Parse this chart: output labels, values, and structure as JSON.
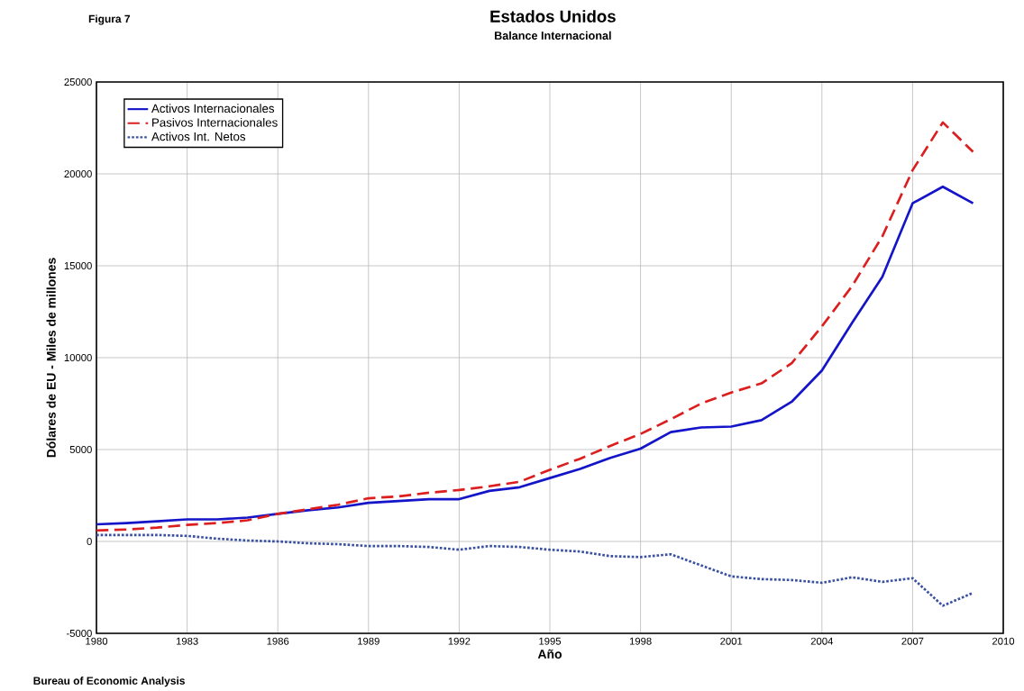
{
  "chart_data": {
    "type": "line",
    "title": "Estados Unidos",
    "subtitle": "Balance Internacional",
    "xlabel": "Año",
    "ylabel": "Dólares de EU - Miles de millones",
    "annotations": [
      "Figura 7",
      "Bureau of Economic Analysis"
    ],
    "x": [
      1980,
      1981,
      1982,
      1983,
      1984,
      1985,
      1986,
      1987,
      1988,
      1989,
      1990,
      1991,
      1992,
      1993,
      1994,
      1995,
      1996,
      1997,
      1998,
      1999,
      2000,
      2001,
      2002,
      2003,
      2004,
      2005,
      2006,
      2007,
      2008,
      2009
    ],
    "series": [
      {
        "name": "Activos Internacionales",
        "color": "#1414c8",
        "line_style": "solid",
        "values": [
          930,
          1000,
          1100,
          1200,
          1200,
          1300,
          1500,
          1700,
          1850,
          2100,
          2200,
          2300,
          2300,
          2750,
          2950,
          3450,
          3950,
          4550,
          5050,
          5950,
          6200,
          6250,
          6600,
          7600,
          9300,
          11900,
          14400,
          18400,
          19300,
          18400
        ]
      },
      {
        "name": "Pasivos Internacionales",
        "color": "#dc1e1e",
        "line_style": "dashed",
        "values": [
          600,
          650,
          750,
          900,
          1000,
          1150,
          1500,
          1750,
          2000,
          2350,
          2450,
          2650,
          2800,
          3000,
          3250,
          3900,
          4500,
          5200,
          5850,
          6650,
          7500,
          8100,
          8600,
          9700,
          11700,
          13900,
          16600,
          20200,
          22800,
          21200
        ]
      },
      {
        "name": "Activos Int. Netos",
        "color": "#3a50a0",
        "line_style": "dotted",
        "values": [
          350,
          350,
          350,
          300,
          150,
          50,
          0,
          -100,
          -150,
          -250,
          -250,
          -300,
          -450,
          -250,
          -300,
          -450,
          -550,
          -800,
          -850,
          -700,
          -1300,
          -1900,
          -2050,
          -2100,
          -2250,
          -1950,
          -2200,
          -2000,
          -3500,
          -2800
        ]
      }
    ],
    "xlim": [
      1980,
      2010
    ],
    "xticks": [
      1980,
      1983,
      1986,
      1989,
      1992,
      1995,
      1998,
      2001,
      2004,
      2007,
      2010
    ],
    "ylim": [
      -5000,
      25000
    ],
    "yticks": [
      -5000,
      0,
      5000,
      10000,
      15000,
      20000,
      25000
    ],
    "grid": true,
    "legend": "top left"
  }
}
